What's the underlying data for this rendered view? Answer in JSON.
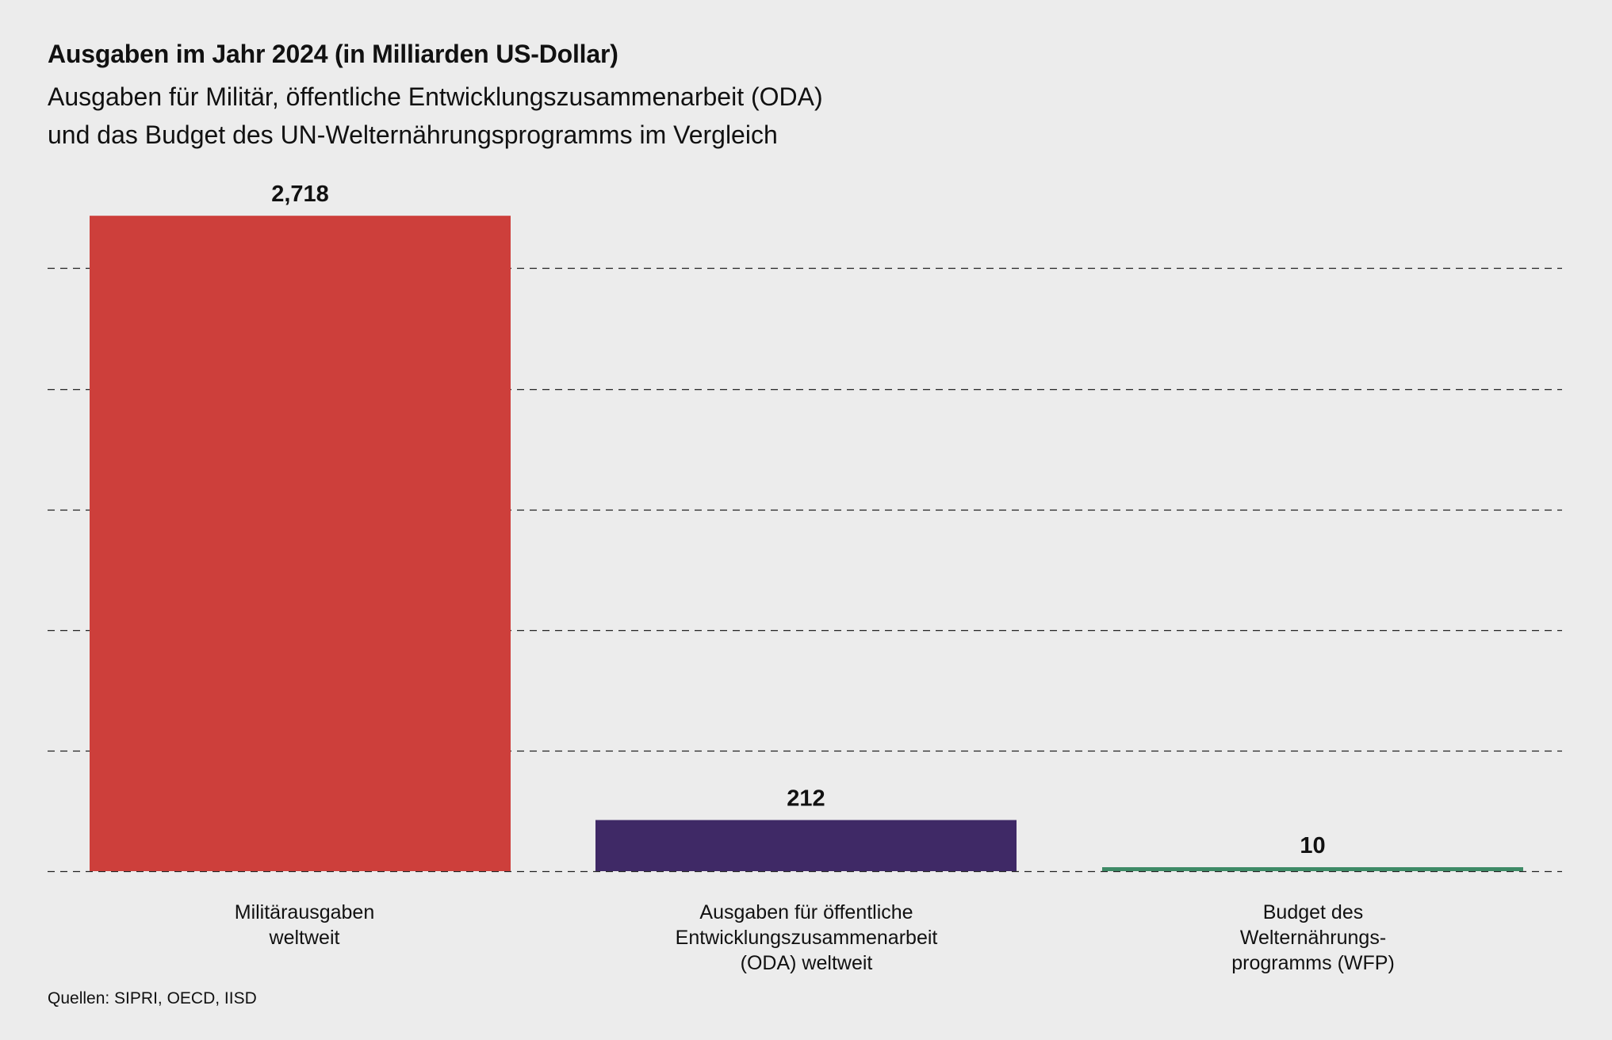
{
  "chart_data": {
    "type": "bar",
    "title": "Ausgaben im Jahr 2024 (in Milliarden US-Dollar)",
    "subtitle": [
      "Ausgaben für Militär, öffentliche Entwicklungszusammenarbeit (ODA)",
      "und das Budget des UN-Welternährungsprogramms im Vergleich"
    ],
    "categories": [
      [
        "Militärausgaben",
        "weltweit"
      ],
      [
        "Ausgaben für öffentliche",
        "Entwicklungszusammenarbeit",
        "(ODA) weltweit"
      ],
      [
        "Budget des",
        "Welternährungs-",
        "programms (WFP)"
      ]
    ],
    "values": [
      2718,
      212,
      10
    ],
    "value_labels": [
      "2,718",
      "212",
      "10"
    ],
    "colors": [
      "#cd3f3b",
      "#3f2966",
      "#3e8a66"
    ],
    "gridlines": [
      0,
      500,
      1000,
      1500,
      2000,
      2500
    ],
    "ylim": [
      0,
      2750
    ],
    "grid": "dashed horizontal",
    "xlabel": "",
    "ylabel": ""
  },
  "source": "Quellen: SIPRI, OECD, IISD"
}
